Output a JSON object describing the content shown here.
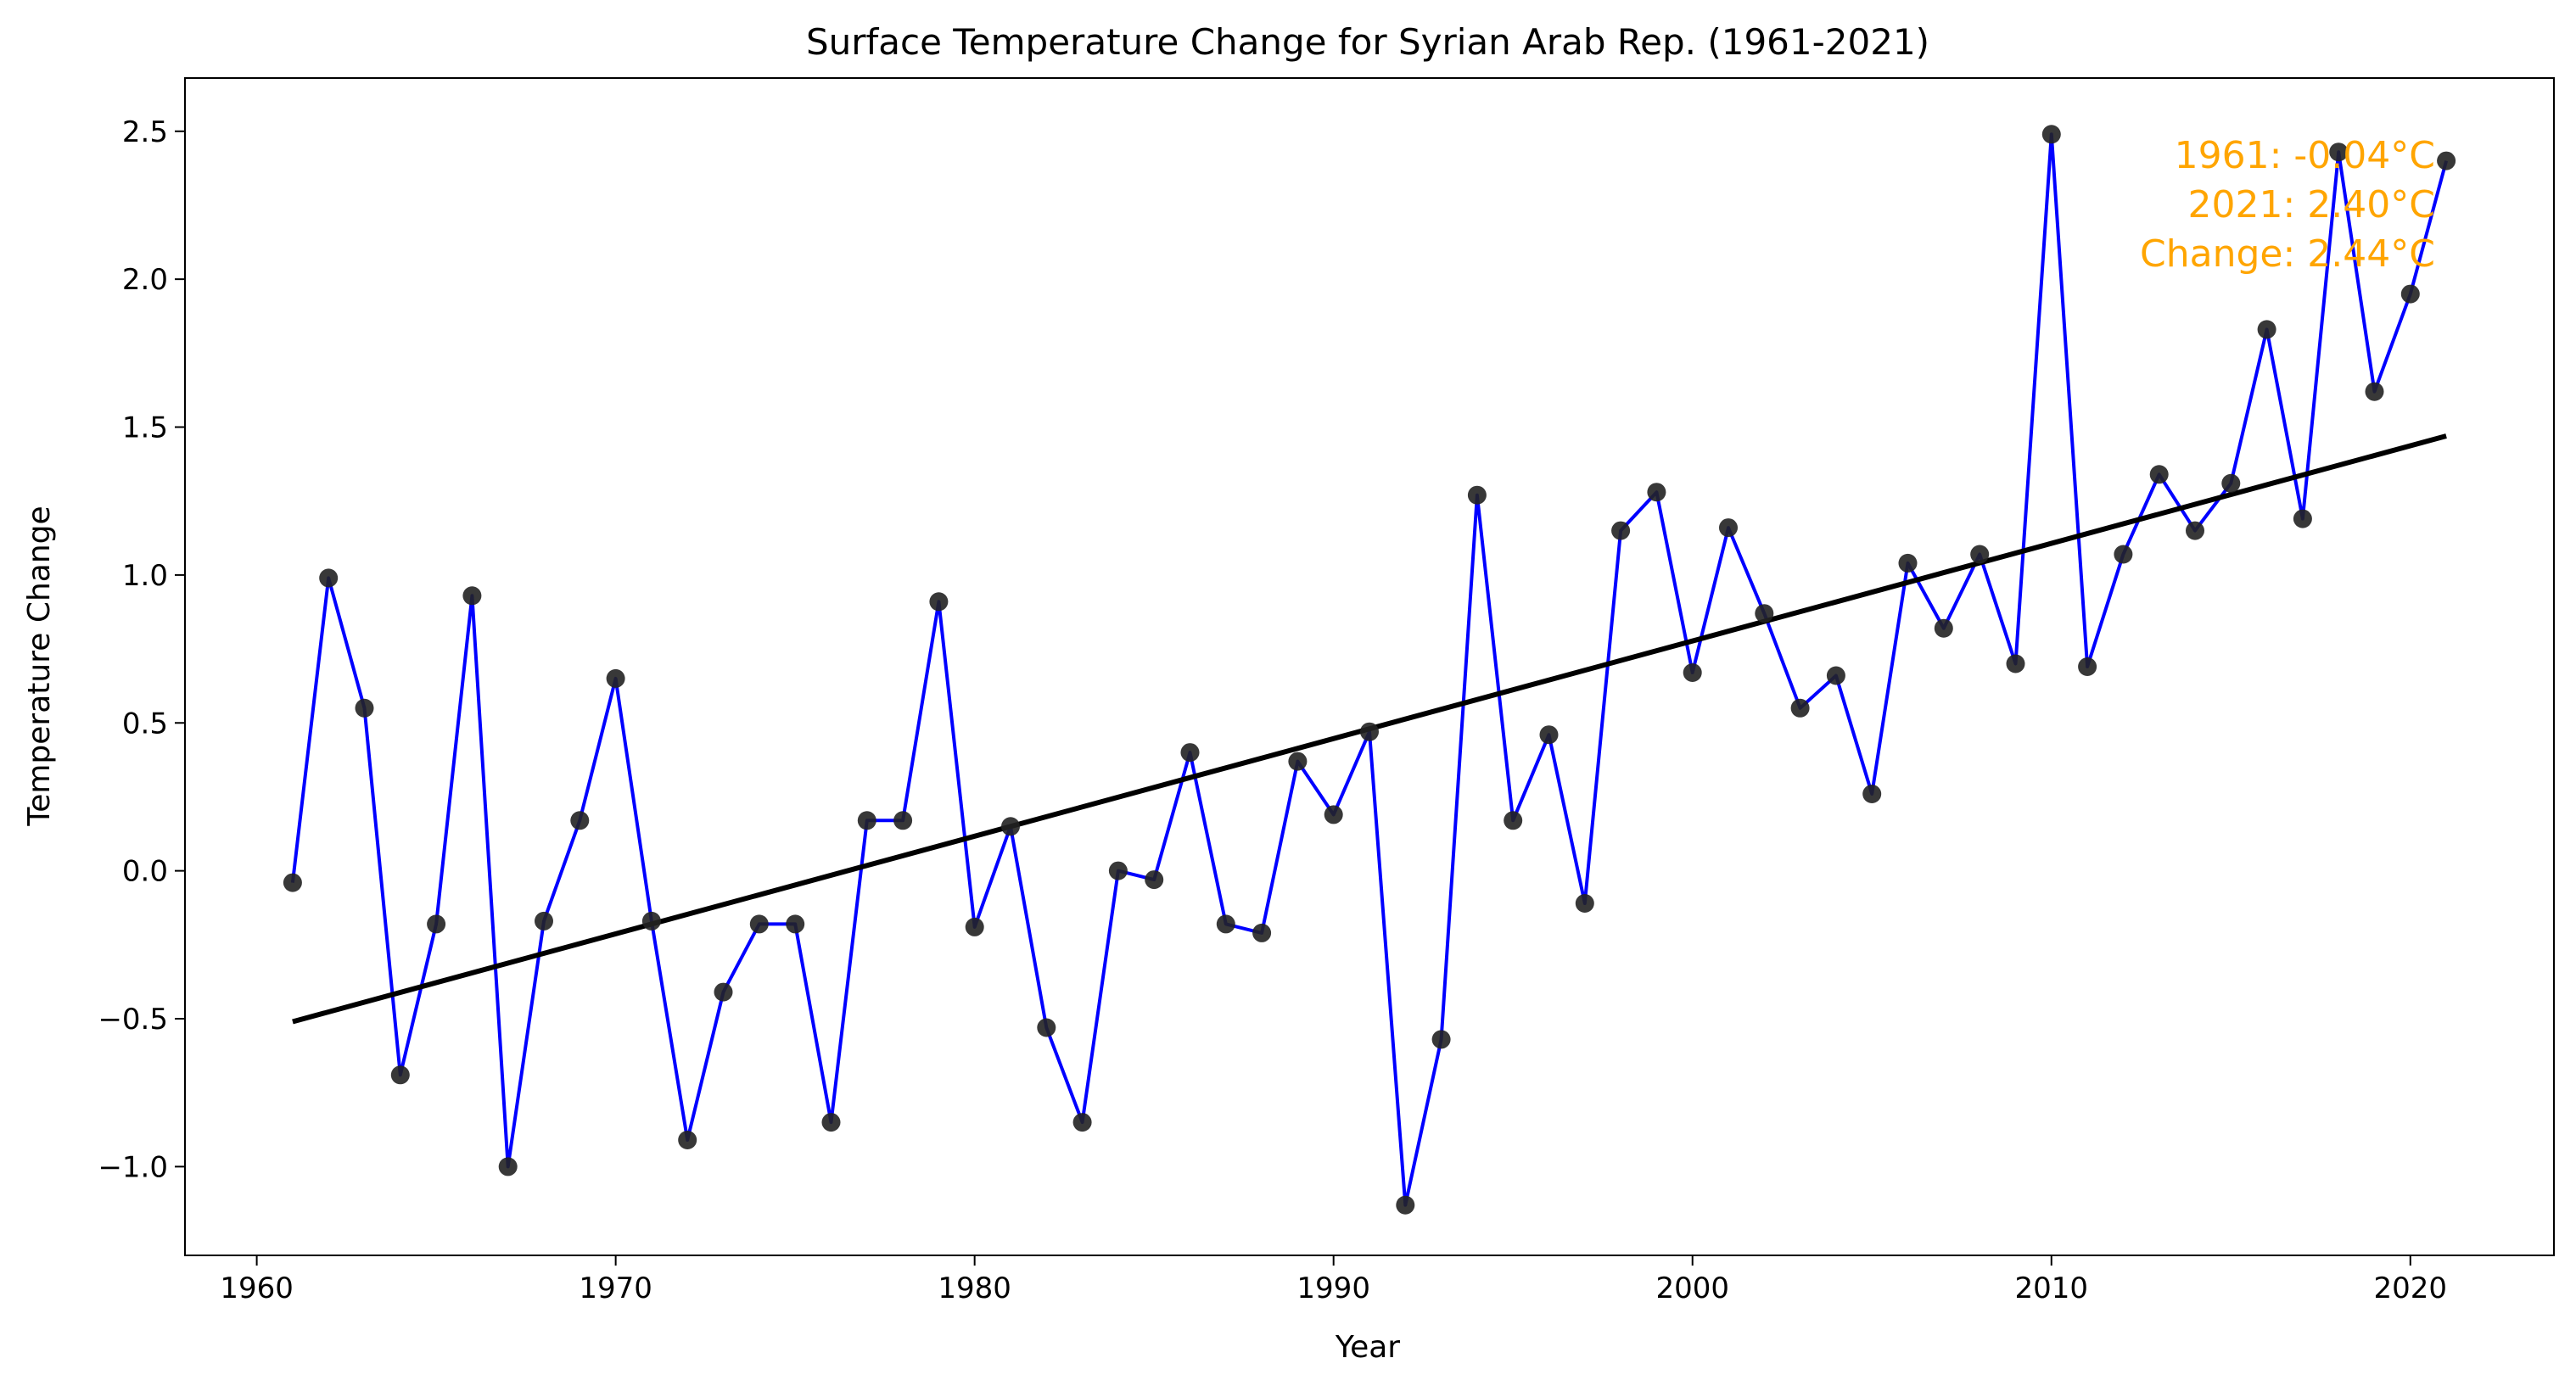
{
  "chart_data": {
    "type": "line",
    "title": "Surface Temperature Change for Syrian Arab Rep. (1961-2021)",
    "xlabel": "Year",
    "ylabel": "Temperature Change",
    "xlim": [
      1958.0,
      2024.0
    ],
    "ylim": [
      -1.3,
      2.68
    ],
    "grid": false,
    "x_ticks": [
      1960,
      1970,
      1980,
      1990,
      2000,
      2010,
      2020
    ],
    "y_ticks": [
      -1.0,
      -0.5,
      0.0,
      0.5,
      1.0,
      1.5,
      2.0,
      2.5
    ],
    "y_tick_labels": [
      "−1.0",
      "−0.5",
      "0.0",
      "0.5",
      "1.0",
      "1.5",
      "2.0",
      "2.5"
    ],
    "series": [
      {
        "color": "#0000FF",
        "marker_color": "#222222",
        "x": [
          1961,
          1962,
          1963,
          1964,
          1965,
          1966,
          1967,
          1968,
          1969,
          1970,
          1971,
          1972,
          1973,
          1974,
          1975,
          1976,
          1977,
          1978,
          1979,
          1980,
          1981,
          1982,
          1983,
          1984,
          1985,
          1986,
          1987,
          1988,
          1989,
          1990,
          1991,
          1992,
          1993,
          1994,
          1995,
          1996,
          1997,
          1998,
          1999,
          2000,
          2001,
          2002,
          2003,
          2004,
          2005,
          2006,
          2007,
          2008,
          2009,
          2010,
          2011,
          2012,
          2013,
          2014,
          2015,
          2016,
          2017,
          2018,
          2019,
          2020,
          2021
        ],
        "y": [
          -0.04,
          0.99,
          0.55,
          -0.69,
          -0.18,
          0.93,
          -1.0,
          -0.17,
          0.17,
          0.65,
          -0.17,
          -0.91,
          -0.41,
          -0.18,
          -0.18,
          -0.85,
          0.17,
          0.17,
          0.91,
          -0.19,
          0.15,
          -0.53,
          -0.85,
          0.0,
          -0.03,
          0.4,
          -0.18,
          -0.21,
          0.37,
          0.19,
          0.47,
          -1.13,
          -0.57,
          1.27,
          0.17,
          0.46,
          -0.11,
          1.15,
          1.28,
          0.67,
          1.16,
          0.87,
          0.55,
          0.66,
          0.26,
          1.04,
          0.82,
          1.07,
          0.7,
          2.49,
          0.69,
          1.07,
          1.34,
          1.15,
          1.31,
          1.83,
          1.19,
          2.43,
          1.62,
          1.95,
          2.4
        ]
      },
      {
        "type": "trend",
        "color": "#000000",
        "x": [
          1961,
          2021
        ],
        "y": [
          -0.51,
          1.47
        ]
      }
    ],
    "annotation": {
      "lines": [
        "1961: -0.04°C",
        "2021: 2.40°C",
        "Change: 2.44°C"
      ],
      "color": "#FFA500"
    }
  }
}
